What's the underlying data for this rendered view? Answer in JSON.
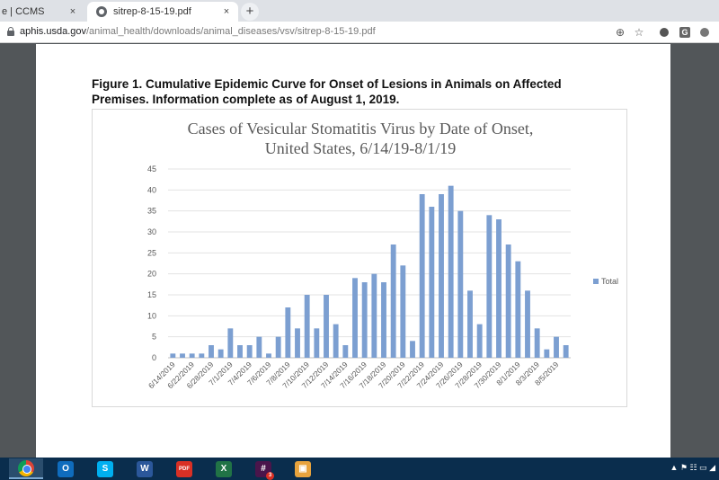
{
  "browser": {
    "tabs": [
      {
        "label": "e | CCMS",
        "close": "×"
      },
      {
        "label": "sitrep-8-15-19.pdf",
        "close": "×"
      }
    ],
    "new_tab": "+",
    "url_host": "aphis.usda.gov",
    "url_path": "/animal_health/downloads/animal_diseases/vsv/sitrep-8-15-19.pdf",
    "icons": [
      "lock-icon",
      "zoom-icon",
      "star-icon",
      "extension-icon",
      "extension-g-icon",
      "extension-icon"
    ],
    "zoom_glyph": "⊕",
    "star_glyph": "☆",
    "ext_g_label": "G"
  },
  "document": {
    "figure_title_line1": "Figure 1.  Cumulative Epidemic Curve for Onset of Lesions in Animals on Affected",
    "figure_title_line2": "Premises.  Information complete as of August 1, 2019."
  },
  "chart_data": {
    "type": "bar",
    "title_line1": "Cases of Vesicular Stomatitis Virus by Date of Onset,",
    "title_line2": "United States, 6/14/19-8/1/19",
    "xlabel": "",
    "ylabel": "",
    "ylim": [
      0,
      45
    ],
    "yticks": [
      0,
      5,
      10,
      15,
      20,
      25,
      30,
      35,
      40,
      45
    ],
    "grid": true,
    "legend_position": "right",
    "series": [
      {
        "name": "Total",
        "color": "#7c9fd1",
        "values": [
          1,
          1,
          1,
          1,
          3,
          2,
          7,
          3,
          3,
          5,
          1,
          5,
          12,
          7,
          15,
          7,
          15,
          8,
          3,
          19,
          18,
          20,
          18,
          27,
          22,
          4,
          39,
          36,
          39,
          41,
          35,
          16,
          8,
          34,
          33,
          27,
          23,
          16,
          7,
          2,
          5,
          3
        ]
      }
    ],
    "x_tick_labels": [
      "6/14/2019",
      "6/22/2019",
      "6/28/2019",
      "7/1/2019",
      "7/4/2019",
      "7/6/2019",
      "7/8/2019",
      "7/10/2019",
      "7/12/2019",
      "7/14/2019",
      "7/16/2019",
      "7/18/2019",
      "7/20/2019",
      "7/22/2019",
      "7/24/2019",
      "7/26/2019",
      "7/28/2019",
      "7/30/2019",
      "8/1/2019",
      "8/3/2019",
      "8/5/2019"
    ]
  },
  "taskbar": {
    "apps": [
      {
        "name": "chrome",
        "label": "",
        "color": "#ffffff"
      },
      {
        "name": "outlook",
        "label": "O",
        "color": "#0f6cbd"
      },
      {
        "name": "skype",
        "label": "S",
        "color": "#00aff0"
      },
      {
        "name": "word",
        "label": "W",
        "color": "#2b579a"
      },
      {
        "name": "pdf",
        "label": "PDF",
        "color": "#d93025"
      },
      {
        "name": "excel",
        "label": "X",
        "color": "#217346"
      },
      {
        "name": "slack",
        "label": "#",
        "color": "#4a154b"
      },
      {
        "name": "files",
        "label": "▣",
        "color": "#e8a33d"
      }
    ],
    "slack_badge": "3",
    "tray_glyphs": "▲ ⚑ ☷ ▭ ◢"
  }
}
